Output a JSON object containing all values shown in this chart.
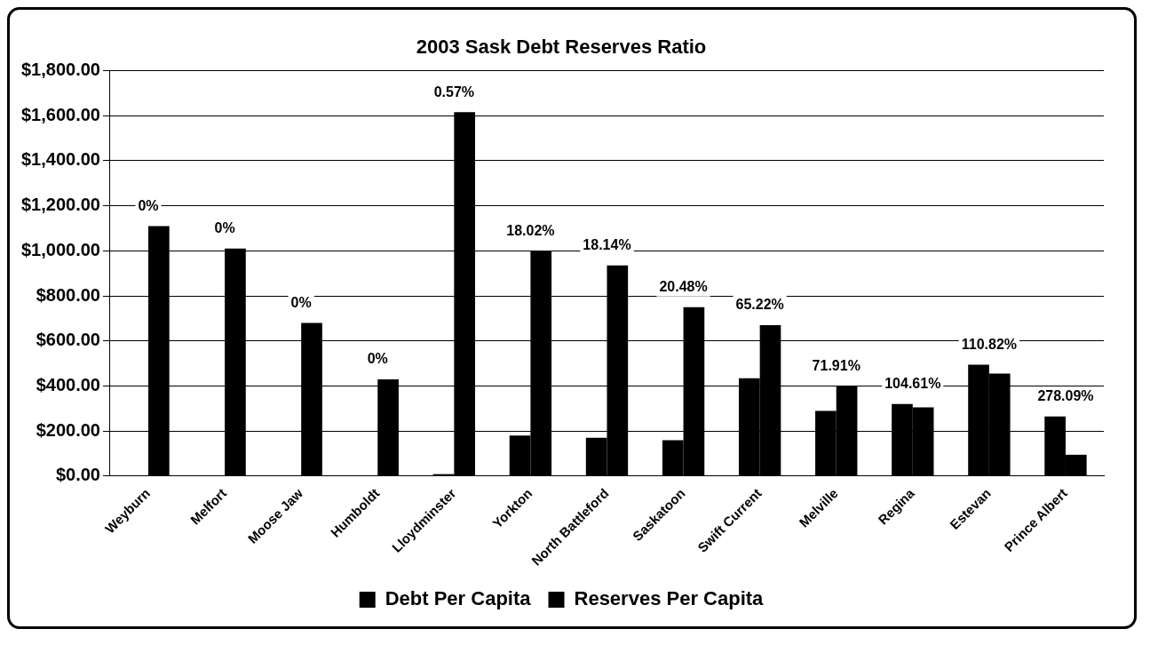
{
  "chart_data": {
    "type": "bar",
    "title": "2003 Sask Debt Reserves Ratio",
    "categories": [
      "Weyburn",
      "Melfort",
      "Moose Jaw",
      "Humboldt",
      "Lloydminster",
      "Yorkton",
      "North Battleford",
      "Saskatoon",
      "Swift Current",
      "Melville",
      "Regina",
      "Estevan",
      "Prince Albert"
    ],
    "series": [
      {
        "name": "Debt Per Capita",
        "color": "#000000",
        "values": [
          0,
          0,
          0,
          0,
          9,
          180,
          170,
          160,
          435,
          290,
          320,
          495,
          265
        ]
      },
      {
        "name": "Reserves Per Capita",
        "color": "#000000",
        "values": [
          1110,
          1010,
          680,
          430,
          1615,
          1000,
          935,
          750,
          670,
          400,
          305,
          455,
          95
        ]
      }
    ],
    "ylim": [
      0,
      1800
    ],
    "yticks": [
      {
        "value": 0,
        "label": "$0.00"
      },
      {
        "value": 200,
        "label": "$200.00"
      },
      {
        "value": 400,
        "label": "$400.00"
      },
      {
        "value": 600,
        "label": "$600.00"
      },
      {
        "value": 800,
        "label": "$800.00"
      },
      {
        "value": 1000,
        "label": "$1,000.00"
      },
      {
        "value": 1200,
        "label": "$1,200.00"
      },
      {
        "value": 1400,
        "label": "$1,400.00"
      },
      {
        "value": 1600,
        "label": "$1,600.00"
      },
      {
        "value": 1800,
        "label": "$1,800.00"
      }
    ],
    "grid": "y",
    "legend": "bottom",
    "annotations": [
      {
        "text": "0%",
        "x": "Weyburn",
        "y": 1110
      },
      {
        "text": "0%",
        "x": "Melfort",
        "y": 1010
      },
      {
        "text": "0%",
        "x": "Moose Jaw",
        "y": 680
      },
      {
        "text": "0%",
        "x": "Humboldt",
        "y": 430
      },
      {
        "text": "0.57%",
        "x": "Lloydminster",
        "y": 1615
      },
      {
        "text": "18.02%",
        "x": "Yorkton",
        "y": 1000
      },
      {
        "text": "18.14%",
        "x": "North Battleford",
        "y": 935
      },
      {
        "text": "20.48%",
        "x": "Saskatoon",
        "y": 750
      },
      {
        "text": "65.22%",
        "x": "Swift Current",
        "y": 670
      },
      {
        "text": "71.91%",
        "x": "Melville",
        "y": 400
      },
      {
        "text": "104.61%",
        "x": "Regina",
        "y": 320
      },
      {
        "text": "110.82%",
        "x": "Estevan",
        "y": 495
      },
      {
        "text": "278.09%",
        "x": "Prince Albert",
        "y": 265
      }
    ]
  }
}
